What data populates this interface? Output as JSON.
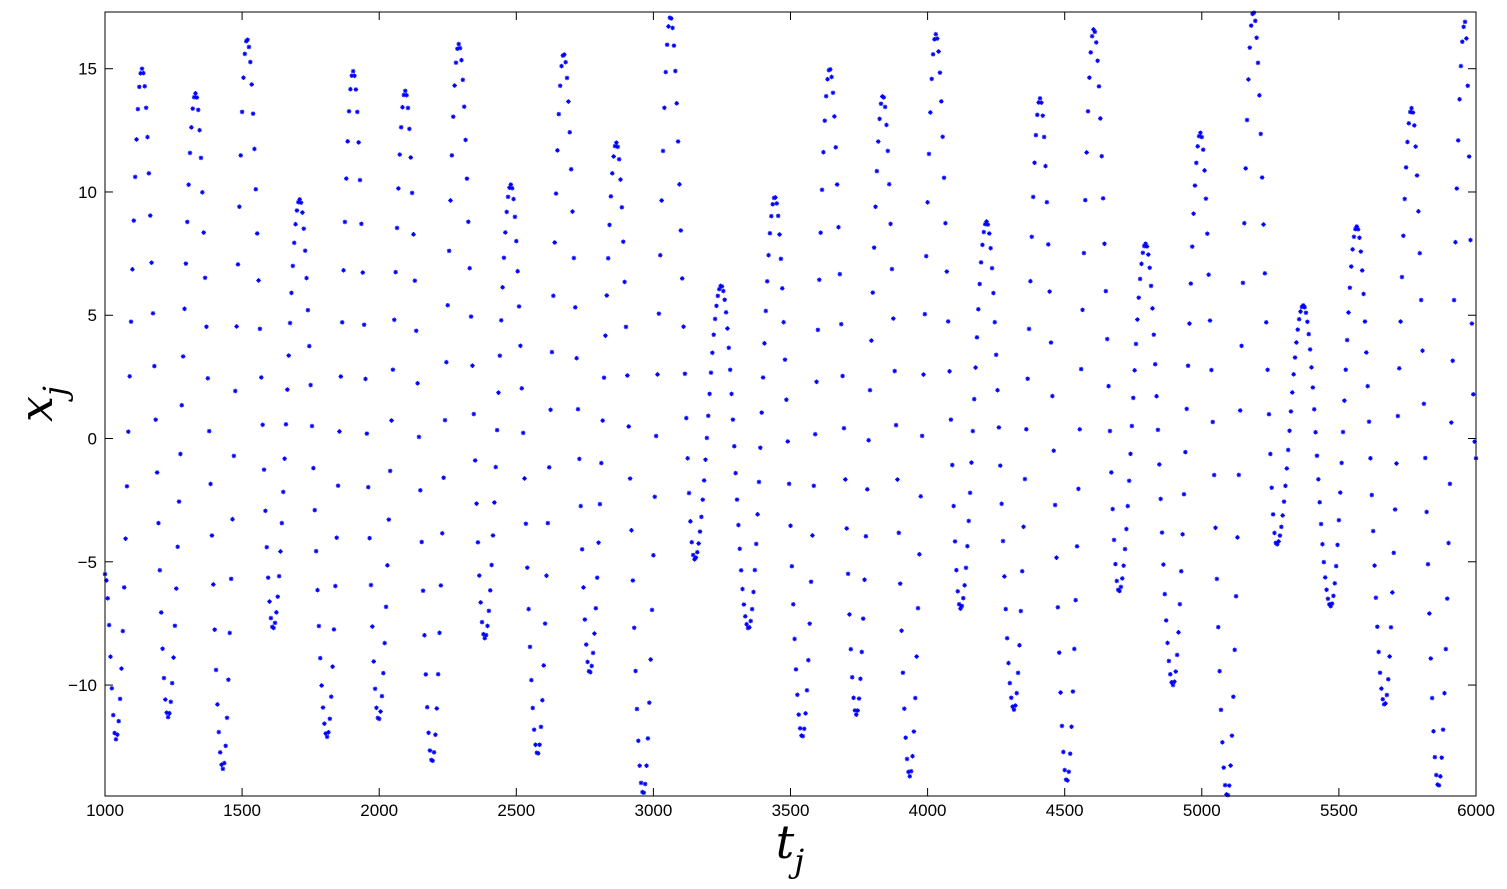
{
  "chart_data": {
    "type": "scatter",
    "title": "",
    "xlabel": "t",
    "xlabel_sub": "j",
    "ylabel": "x",
    "ylabel_sub": "j",
    "xlim": [
      1000,
      6000
    ],
    "ylim": [
      -14.5,
      17.3
    ],
    "xticks": [
      1000,
      1500,
      2000,
      2500,
      3000,
      3500,
      4000,
      4500,
      5000,
      5500,
      6000
    ],
    "yticks": [
      -10,
      -5,
      0,
      5,
      10,
      15
    ],
    "ytick_labels": [
      "−10",
      "−5",
      "0",
      "5",
      "10",
      "15"
    ],
    "grid": false,
    "marker": "*",
    "marker_color": "#0000ff",
    "series": [
      {
        "extrema_t": [
          1000,
          1040,
          1135,
          1230,
          1330,
          1430,
          1518,
          1613,
          1710,
          1810,
          1905,
          1998,
          2095,
          2193,
          2290,
          2385,
          2480,
          2578,
          2673,
          2768,
          2865,
          2963,
          3062,
          3150,
          3247,
          3347,
          3443,
          3543,
          3643,
          3740,
          3837,
          3935,
          4030,
          4120,
          4215,
          4315,
          4410,
          4508,
          4606,
          4698,
          4795,
          4895,
          4995,
          5093,
          5188,
          5273,
          5370,
          5470,
          5565,
          5667,
          5765,
          5863,
          5960,
          6000
        ],
        "extrema_x": [
          -5.5,
          -12.2,
          15.0,
          -11.3,
          14.0,
          -13.4,
          16.2,
          -7.7,
          9.7,
          -12.1,
          14.9,
          -11.4,
          14.1,
          -13.1,
          16.0,
          -8.1,
          10.3,
          -12.8,
          15.6,
          -9.5,
          12.0,
          -14.4,
          17.1,
          -4.9,
          6.2,
          -7.7,
          9.8,
          -12.1,
          15.0,
          -11.2,
          13.9,
          -13.7,
          16.4,
          -6.9,
          8.8,
          -11.0,
          13.8,
          -13.9,
          16.6,
          -6.2,
          7.9,
          -10.0,
          12.4,
          -14.5,
          17.3,
          -4.3,
          5.4,
          -6.8,
          8.6,
          -10.8,
          13.4,
          -14.1,
          16.9,
          -0.8
        ],
        "sampling_step": 5
      }
    ]
  }
}
